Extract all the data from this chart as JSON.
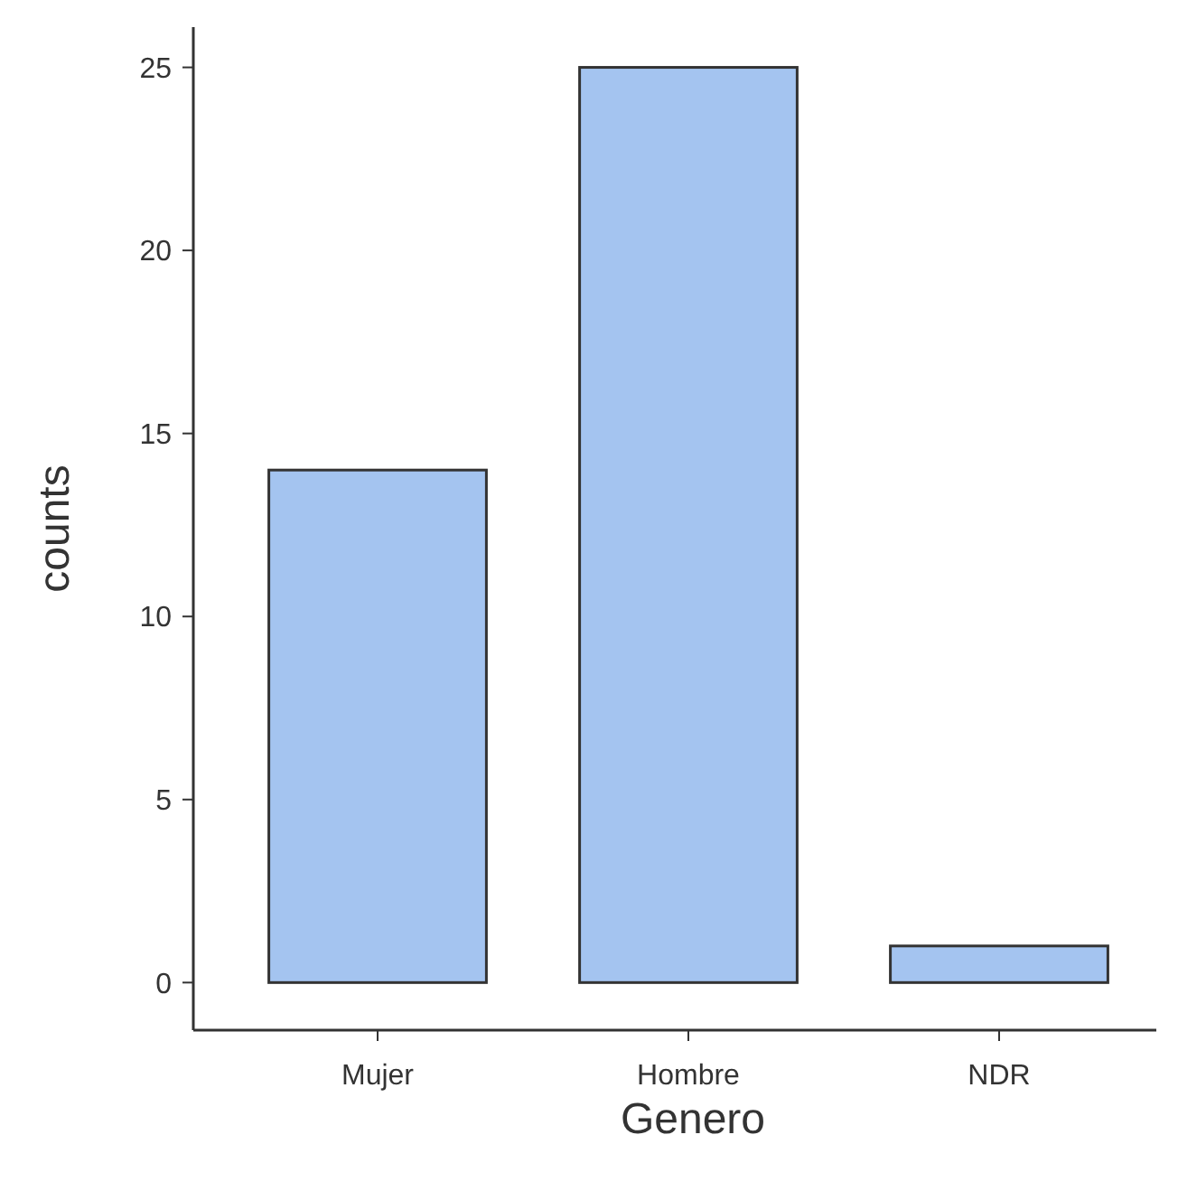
{
  "chart_data": {
    "type": "bar",
    "xlabel": "Genero",
    "ylabel": "counts",
    "categories": [
      "Mujer",
      "Hombre",
      "NDR"
    ],
    "values": [
      14,
      25,
      1
    ],
    "color": "#a4c4f0",
    "ylim": [
      -1.3,
      26.1
    ],
    "yticks": [
      0,
      5,
      10,
      15,
      20,
      25
    ],
    "grid": false
  }
}
